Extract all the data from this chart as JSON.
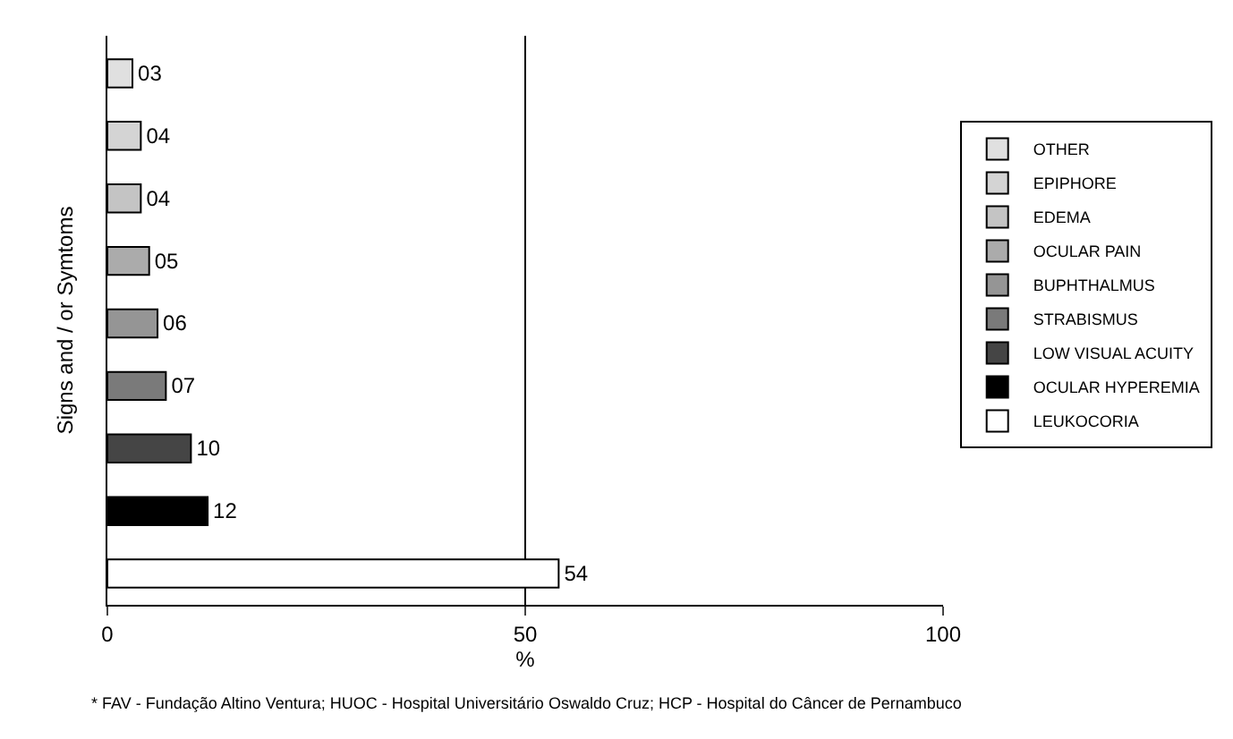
{
  "chart_data": {
    "type": "bar",
    "orientation": "horizontal",
    "ylabel": "Signs and / or Symtoms",
    "xlabel": "%",
    "categories": [
      null,
      null,
      null,
      null,
      null,
      null,
      null,
      null,
      null
    ],
    "series": [
      {
        "name": "OTHER",
        "color": "#e0e0e0",
        "values": [
          3,
          null,
          null,
          null,
          null,
          null,
          null,
          null,
          null
        ]
      },
      {
        "name": "EPIPHORE",
        "color": "#d4d4d4",
        "values": [
          null,
          4,
          null,
          null,
          null,
          null,
          null,
          null,
          null
        ]
      },
      {
        "name": "EDEMA",
        "color": "#c4c4c4",
        "values": [
          null,
          null,
          4,
          null,
          null,
          null,
          null,
          null,
          null
        ]
      },
      {
        "name": "OCULAR PAIN",
        "color": "#ababab",
        "values": [
          null,
          null,
          null,
          5,
          null,
          null,
          null,
          null,
          null
        ]
      },
      {
        "name": "BUPHTHALMUS",
        "color": "#959595",
        "values": [
          null,
          null,
          null,
          null,
          6,
          null,
          null,
          null,
          null
        ]
      },
      {
        "name": "STRABISMUS",
        "color": "#7a7a7a",
        "values": [
          null,
          null,
          null,
          null,
          null,
          7,
          null,
          null,
          null
        ]
      },
      {
        "name": "LOW VISUAL ACUITY",
        "color": "#454545",
        "values": [
          null,
          null,
          null,
          null,
          null,
          null,
          10,
          null,
          null
        ]
      },
      {
        "name": "OCULAR HYPEREMIA",
        "color": "#000000",
        "values": [
          null,
          null,
          null,
          null,
          null,
          null,
          null,
          12,
          null
        ]
      },
      {
        "name": "LEUKOCORIA",
        "color": "#ffffff",
        "values": [
          null,
          null,
          null,
          null,
          null,
          null,
          null,
          null,
          54
        ]
      }
    ],
    "value_labels": [
      "03",
      "04",
      "04",
      "05",
      "06",
      "07",
      "10",
      "12",
      "54"
    ],
    "xlim": [
      0,
      100
    ],
    "xticks": [
      0,
      50,
      100
    ],
    "grid": "x",
    "legend": "right",
    "tick_labels": "x",
    "annotations": [
      "* FAV - Fundação Altino Ventura; HUOC - Hospital Universitário Oswaldo Cruz; HCP - Hospital do Câncer de Pernambuco"
    ]
  }
}
